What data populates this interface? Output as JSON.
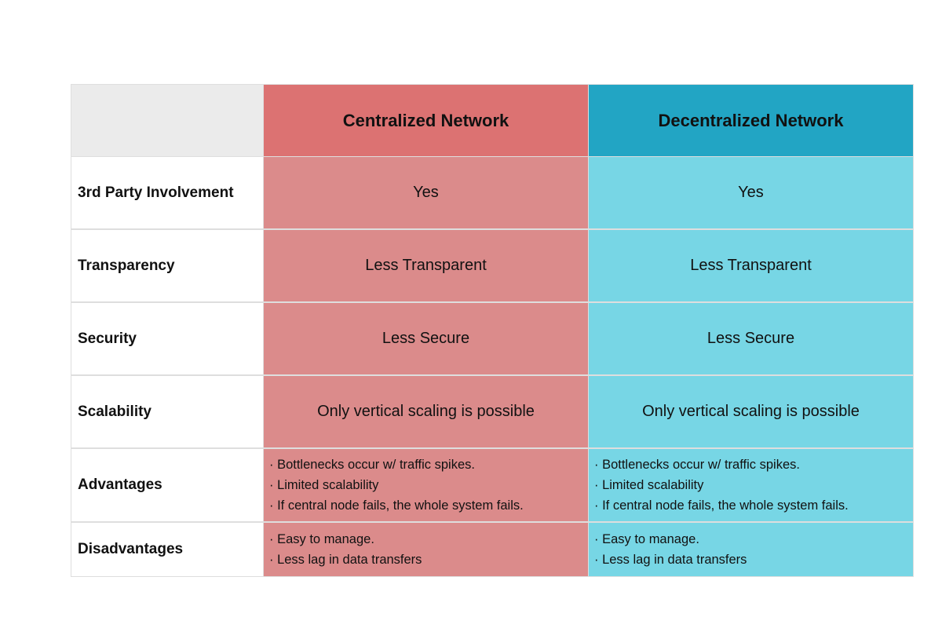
{
  "table": {
    "columns": [
      "Centralized Network",
      "Decentralized Network"
    ],
    "rows": [
      {
        "label": "3rd Party Involvement",
        "cells": [
          "Yes",
          "Yes"
        ]
      },
      {
        "label": "Transparency",
        "cells": [
          "Less Transparent",
          "Less Transparent"
        ]
      },
      {
        "label": "Security",
        "cells": [
          "Less Secure",
          "Less Secure"
        ]
      },
      {
        "label": "Scalability",
        "cells": [
          "Only vertical scaling is possible",
          "Only vertical scaling is possible"
        ]
      },
      {
        "label": "Advantages",
        "cells": [
          [
            "· Bottlenecks occur w/ traffic spikes.",
            "· Limited scalability",
            "· If central node fails, the whole system fails."
          ],
          [
            "· Bottlenecks occur w/ traffic spikes.",
            "· Limited scalability",
            "· If central node fails, the whole system fails."
          ]
        ]
      },
      {
        "label": "Disadvantages",
        "cells": [
          [
            "· Easy to manage.",
            "· Less lag in data transfers"
          ],
          [
            "· Easy to manage.",
            "· Less lag in data transfers"
          ]
        ]
      }
    ]
  }
}
